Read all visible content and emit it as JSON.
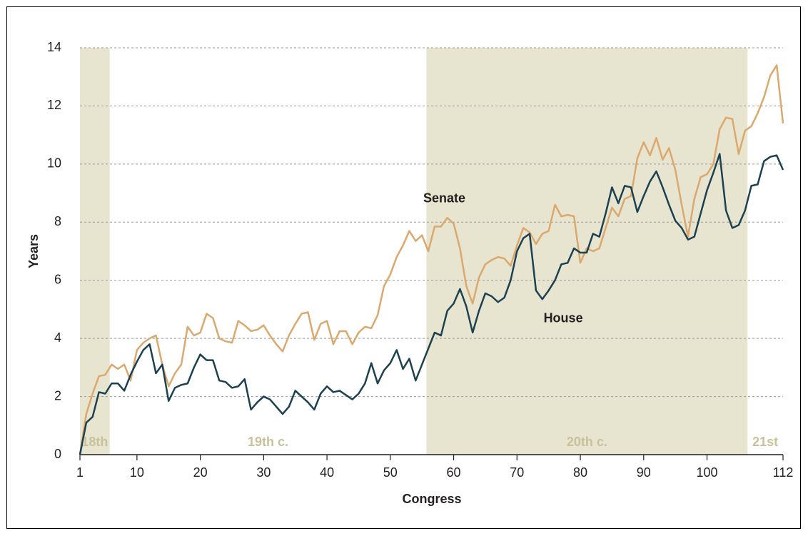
{
  "chart_data": {
    "type": "line",
    "x_label": "Congress",
    "y_label": "Years",
    "x": [
      1,
      2,
      3,
      4,
      5,
      6,
      7,
      8,
      9,
      10,
      11,
      12,
      13,
      14,
      15,
      16,
      17,
      18,
      19,
      20,
      21,
      22,
      23,
      24,
      25,
      26,
      27,
      28,
      29,
      30,
      31,
      32,
      33,
      34,
      35,
      36,
      37,
      38,
      39,
      40,
      41,
      42,
      43,
      44,
      45,
      46,
      47,
      48,
      49,
      50,
      51,
      52,
      53,
      54,
      55,
      56,
      57,
      58,
      59,
      60,
      61,
      62,
      63,
      64,
      65,
      66,
      67,
      68,
      69,
      70,
      71,
      72,
      73,
      74,
      75,
      76,
      77,
      78,
      79,
      80,
      81,
      82,
      83,
      84,
      85,
      86,
      87,
      88,
      89,
      90,
      91,
      92,
      93,
      94,
      95,
      96,
      97,
      98,
      99,
      100,
      101,
      102,
      103,
      104,
      105,
      106,
      107,
      108,
      109,
      110,
      111,
      112
    ],
    "series": [
      {
        "name": "Senate",
        "color": "#dba86e",
        "label_x": 55.2,
        "label_y": 8.8,
        "values": [
          0,
          1.4,
          2.1,
          2.7,
          2.75,
          3.1,
          2.95,
          3.1,
          2.55,
          3.6,
          3.85,
          4.0,
          4.1,
          3.1,
          2.35,
          2.8,
          3.1,
          4.4,
          4.1,
          4.2,
          4.85,
          4.7,
          4.0,
          3.9,
          3.85,
          4.6,
          4.45,
          4.25,
          4.3,
          4.45,
          4.1,
          3.8,
          3.55,
          4.1,
          4.5,
          4.85,
          4.9,
          3.95,
          4.5,
          4.6,
          3.8,
          4.25,
          4.25,
          3.8,
          4.2,
          4.4,
          4.35,
          4.8,
          5.8,
          6.2,
          6.8,
          7.2,
          7.7,
          7.35,
          7.55,
          7.0,
          7.85,
          7.85,
          8.15,
          7.95,
          7.1,
          5.8,
          5.2,
          6.1,
          6.55,
          6.7,
          6.8,
          6.75,
          6.5,
          7.2,
          7.8,
          7.65,
          7.25,
          7.6,
          7.7,
          8.6,
          8.2,
          8.25,
          8.2,
          6.6,
          7.1,
          7.0,
          7.1,
          7.8,
          8.5,
          8.2,
          8.8,
          8.9,
          10.2,
          10.75,
          10.3,
          10.9,
          10.15,
          10.55,
          9.8,
          8.6,
          7.5,
          8.8,
          9.55,
          9.65,
          10.0,
          11.2,
          11.6,
          11.55,
          10.35,
          11.15,
          11.3,
          11.75,
          12.3,
          13.05,
          13.4,
          11.4
        ]
      },
      {
        "name": "House",
        "color": "#1c4150",
        "label_x": 74.2,
        "label_y": 4.67,
        "values": [
          0,
          1.1,
          1.3,
          2.15,
          2.1,
          2.45,
          2.45,
          2.2,
          2.75,
          3.2,
          3.6,
          3.8,
          2.8,
          3.1,
          1.85,
          2.3,
          2.4,
          2.45,
          3.0,
          3.45,
          3.25,
          3.25,
          2.55,
          2.5,
          2.3,
          2.35,
          2.6,
          1.55,
          1.8,
          2.0,
          1.9,
          1.65,
          1.4,
          1.65,
          2.2,
          2.0,
          1.8,
          1.55,
          2.1,
          2.35,
          2.15,
          2.2,
          2.05,
          1.9,
          2.1,
          2.45,
          3.15,
          2.45,
          2.9,
          3.15,
          3.6,
          2.95,
          3.3,
          2.55,
          3.1,
          3.65,
          4.2,
          4.1,
          4.95,
          5.2,
          5.7,
          5.1,
          4.2,
          4.95,
          5.55,
          5.45,
          5.25,
          5.4,
          6.0,
          7.0,
          7.45,
          7.6,
          5.65,
          5.35,
          5.65,
          6.0,
          6.55,
          6.6,
          7.1,
          6.95,
          6.95,
          7.6,
          7.5,
          8.3,
          9.2,
          8.65,
          9.25,
          9.2,
          8.35,
          8.9,
          9.4,
          9.75,
          9.2,
          8.6,
          8.05,
          7.8,
          7.4,
          7.5,
          8.3,
          9.1,
          9.7,
          10.35,
          8.4,
          7.8,
          7.9,
          8.4,
          9.25,
          9.3,
          10.1,
          10.25,
          10.3,
          9.8
        ]
      }
    ],
    "eras": [
      {
        "label": "18th",
        "from": 1,
        "to": 5.7,
        "shaded": true
      },
      {
        "label": "19th c.",
        "from": 5.7,
        "to": 55.7,
        "shaded": false
      },
      {
        "label": "20th c.",
        "from": 55.7,
        "to": 106.4,
        "shaded": true
      },
      {
        "label": "21st",
        "from": 106.4,
        "to": 112,
        "shaded": false
      }
    ],
    "band_color": "#e7e4d0",
    "era_label_color": "#c9c19a",
    "xlim": [
      1,
      112
    ],
    "xticks": [
      1,
      10,
      20,
      30,
      40,
      50,
      60,
      70,
      80,
      90,
      100,
      112
    ],
    "ylim": [
      0,
      14
    ],
    "yticks": [
      0,
      2,
      4,
      6,
      8,
      10,
      12,
      14
    ],
    "grid": true
  }
}
